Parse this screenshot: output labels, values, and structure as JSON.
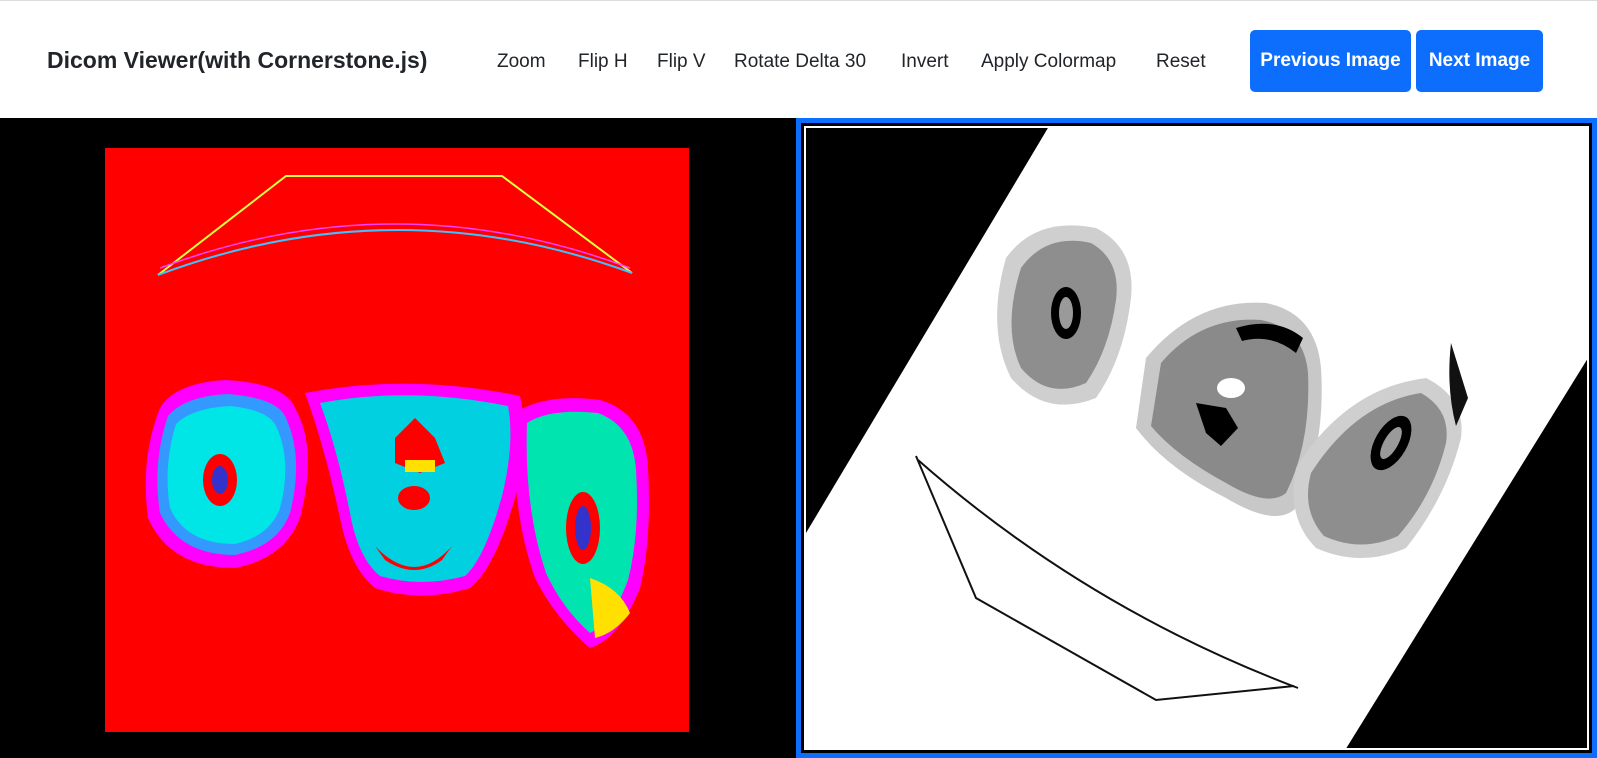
{
  "navbar": {
    "brand": "Dicom Viewer(with Cornerstone.js)",
    "links": [
      "Zoom",
      "Flip H",
      "Flip V",
      "Rotate Delta 30",
      "Invert",
      "Apply Colormap",
      "Reset"
    ],
    "buttons": {
      "previous": "Previous Image",
      "next": "Next Image"
    }
  },
  "colors": {
    "accent": "#0d6efd",
    "navbar_bg": "#ffffff",
    "viewer_bg": "#000000",
    "colormap_background": "#ff0000"
  },
  "viewports": [
    {
      "name": "left-viewport",
      "colormap_applied": true,
      "selected": false
    },
    {
      "name": "right-viewport",
      "rotation_deg": -30,
      "inverted": true,
      "selected": true
    }
  ]
}
